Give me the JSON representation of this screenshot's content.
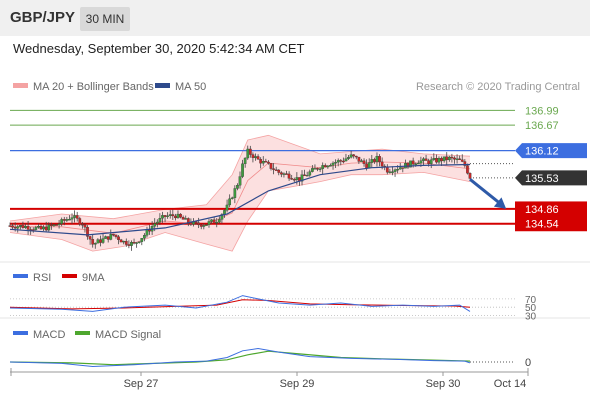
{
  "header": {
    "pair": "GBP/JPY",
    "timeframe": "30 MIN"
  },
  "datetime": "Wednesday, September 30, 2020 5:42:34 AM CET",
  "legend": {
    "ma20_bb": "MA 20 + Bollinger Bands",
    "ma50": "MA 50",
    "credit": "Research © 2020 Trading Central"
  },
  "rsi_legend": {
    "rsi": "RSI",
    "ma9": "9MA"
  },
  "macd_legend": {
    "macd": "MACD",
    "signal": "MACD Signal"
  },
  "colors": {
    "bb": "#f4a3a3",
    "ma50": "#2e4a8c",
    "blue_line": "#3c6ee0",
    "red_level": "#d40000",
    "green_level": "#6aa84f",
    "arrow": "#2e5aa8"
  },
  "levels": {
    "green": [
      136.99,
      136.67
    ],
    "blue": 136.12,
    "current": 135.53,
    "red": [
      134.86,
      134.54
    ]
  },
  "level_labels": {
    "g1": "136.99",
    "g2": "136.67",
    "blue": "136.12",
    "current": "135.53",
    "r1": "134.86",
    "r2": "134.54"
  },
  "rsi_ticks": {
    "t70": "70",
    "t50": "50",
    "t30": "30"
  },
  "macd_ticks": {
    "t0": "0"
  },
  "xaxis": {
    "labels": [
      "Sep 27",
      "Sep 29",
      "Sep 30",
      "Oct 14"
    ]
  },
  "chart_data": {
    "type": "candlestick",
    "instrument": "GBP/JPY",
    "interval": "30 MIN",
    "y_range": [
      133.8,
      137.3
    ],
    "levels": [
      136.99,
      136.67,
      136.12,
      135.53,
      134.86,
      134.54
    ],
    "close_path": [
      [
        0,
        134.5
      ],
      [
        3,
        134.48
      ],
      [
        6,
        134.42
      ],
      [
        9,
        134.52
      ],
      [
        12,
        134.7
      ],
      [
        14,
        134.55
      ],
      [
        16,
        134.1
      ],
      [
        18,
        134.2
      ],
      [
        20,
        134.3
      ],
      [
        22,
        134.15
      ],
      [
        24,
        134.1
      ],
      [
        26,
        134.3
      ],
      [
        28,
        134.55
      ],
      [
        30,
        134.7
      ],
      [
        32,
        134.72
      ],
      [
        34,
        134.6
      ],
      [
        36,
        134.52
      ],
      [
        38,
        134.54
      ],
      [
        40,
        134.62
      ],
      [
        42,
        134.9
      ],
      [
        44,
        135.4
      ],
      [
        45,
        135.8
      ],
      [
        46,
        136.1
      ],
      [
        48,
        135.92
      ],
      [
        50,
        135.8
      ],
      [
        52,
        135.65
      ],
      [
        54,
        135.58
      ],
      [
        56,
        135.5
      ],
      [
        58,
        135.65
      ],
      [
        60,
        135.78
      ],
      [
        62,
        135.85
      ],
      [
        64,
        135.9
      ],
      [
        66,
        136.0
      ],
      [
        67,
        135.95
      ],
      [
        69,
        135.8
      ],
      [
        71,
        135.95
      ],
      [
        73,
        135.7
      ],
      [
        75,
        135.75
      ],
      [
        77,
        135.82
      ],
      [
        79,
        135.9
      ],
      [
        81,
        135.88
      ],
      [
        83,
        135.92
      ],
      [
        85,
        135.95
      ],
      [
        87,
        135.9
      ],
      [
        88,
        135.8
      ],
      [
        89,
        135.55
      ]
    ],
    "ma50": [
      [
        0,
        134.42
      ],
      [
        15,
        134.3
      ],
      [
        30,
        134.45
      ],
      [
        42,
        134.75
      ],
      [
        50,
        135.25
      ],
      [
        60,
        135.6
      ],
      [
        70,
        135.75
      ],
      [
        80,
        135.8
      ],
      [
        89,
        135.82
      ]
    ],
    "bb_upper": [
      [
        0,
        134.6
      ],
      [
        10,
        134.75
      ],
      [
        20,
        134.65
      ],
      [
        30,
        134.85
      ],
      [
        38,
        134.95
      ],
      [
        43,
        135.6
      ],
      [
        46,
        136.35
      ],
      [
        50,
        136.45
      ],
      [
        55,
        136.25
      ],
      [
        60,
        136.05
      ],
      [
        66,
        136.1
      ],
      [
        72,
        136.15
      ],
      [
        80,
        136.05
      ],
      [
        89,
        136.0
      ]
    ],
    "bb_lower": [
      [
        0,
        134.35
      ],
      [
        10,
        134.2
      ],
      [
        16,
        133.95
      ],
      [
        22,
        134.05
      ],
      [
        30,
        134.35
      ],
      [
        38,
        134.1
      ],
      [
        43,
        133.95
      ],
      [
        46,
        134.6
      ],
      [
        50,
        135.25
      ],
      [
        55,
        135.35
      ],
      [
        60,
        135.45
      ],
      [
        66,
        135.6
      ],
      [
        72,
        135.6
      ],
      [
        80,
        135.65
      ],
      [
        89,
        135.45
      ]
    ],
    "rsi": {
      "range": [
        0,
        100
      ],
      "levels": [
        70,
        50,
        30
      ],
      "values": [
        [
          0,
          48
        ],
        [
          10,
          45
        ],
        [
          16,
          40
        ],
        [
          22,
          50
        ],
        [
          30,
          55
        ],
        [
          36,
          48
        ],
        [
          42,
          62
        ],
        [
          45,
          78
        ],
        [
          48,
          70
        ],
        [
          52,
          60
        ],
        [
          58,
          55
        ],
        [
          64,
          60
        ],
        [
          70,
          52
        ],
        [
          76,
          55
        ],
        [
          82,
          52
        ],
        [
          87,
          55
        ],
        [
          89,
          40
        ]
      ],
      "ma9": [
        [
          0,
          50
        ],
        [
          12,
          46
        ],
        [
          22,
          48
        ],
        [
          32,
          52
        ],
        [
          40,
          55
        ],
        [
          45,
          68
        ],
        [
          50,
          66
        ],
        [
          58,
          58
        ],
        [
          66,
          56
        ],
        [
          76,
          54
        ],
        [
          86,
          53
        ],
        [
          89,
          50
        ]
      ]
    },
    "macd": {
      "zero": 0,
      "values": [
        [
          0,
          0.0
        ],
        [
          10,
          -0.03
        ],
        [
          16,
          -0.1
        ],
        [
          24,
          -0.06
        ],
        [
          32,
          0.0
        ],
        [
          38,
          0.02
        ],
        [
          42,
          0.1
        ],
        [
          45,
          0.25
        ],
        [
          48,
          0.3
        ],
        [
          52,
          0.22
        ],
        [
          58,
          0.12
        ],
        [
          66,
          0.08
        ],
        [
          74,
          0.06
        ],
        [
          82,
          0.03
        ],
        [
          88,
          0.02
        ],
        [
          89,
          -0.02
        ]
      ],
      "signal": [
        [
          0,
          0.0
        ],
        [
          12,
          -0.02
        ],
        [
          20,
          -0.06
        ],
        [
          28,
          -0.03
        ],
        [
          36,
          0.0
        ],
        [
          42,
          0.05
        ],
        [
          46,
          0.16
        ],
        [
          50,
          0.24
        ],
        [
          56,
          0.18
        ],
        [
          64,
          0.1
        ],
        [
          72,
          0.07
        ],
        [
          80,
          0.05
        ],
        [
          89,
          0.02
        ]
      ]
    },
    "projection_arrow": {
      "from": [
        89,
        135.5
      ],
      "to": [
        96,
        134.86
      ]
    }
  }
}
